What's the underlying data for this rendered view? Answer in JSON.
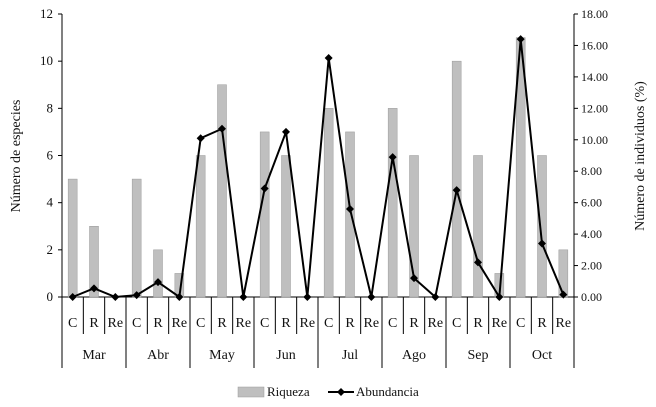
{
  "chart_data": {
    "type": "bar",
    "title": "",
    "ylabel": "Número de especies",
    "y2label": "Número de individuos (%)",
    "ylim": [
      0,
      12
    ],
    "y2lim": [
      0,
      18
    ],
    "yticks": [
      "0",
      "2",
      "4",
      "6",
      "8",
      "10",
      "12"
    ],
    "y2ticks": [
      "0.00",
      "2.00",
      "4.00",
      "6.00",
      "8.00",
      "10.00",
      "12.00",
      "14.00",
      "16.00",
      "18.00"
    ],
    "groups": [
      "Mar",
      "Abr",
      "May",
      "Jun",
      "Jul",
      "Ago",
      "Sep",
      "Oct"
    ],
    "subcategories": [
      "C",
      "R",
      "Re"
    ],
    "legend_position": "bottom",
    "grid": false,
    "series": [
      {
        "name": "Riqueza",
        "type": "bar",
        "axis": "left",
        "color": "#bfbfbf",
        "values": [
          5,
          3,
          0,
          5,
          2,
          1,
          6,
          9,
          0,
          7,
          6,
          0,
          8,
          7,
          0,
          8,
          6,
          0,
          10,
          6,
          1,
          11,
          6,
          2
        ]
      },
      {
        "name": "Abundancia",
        "type": "line",
        "axis": "right",
        "color": "#000000",
        "values": [
          0.0,
          0.55,
          0.0,
          0.12,
          0.95,
          0.0,
          10.1,
          10.7,
          0.0,
          6.9,
          10.5,
          0.0,
          15.2,
          5.6,
          0.0,
          8.9,
          1.2,
          0.0,
          6.8,
          2.2,
          0.0,
          16.4,
          3.4,
          0.15
        ]
      }
    ]
  }
}
